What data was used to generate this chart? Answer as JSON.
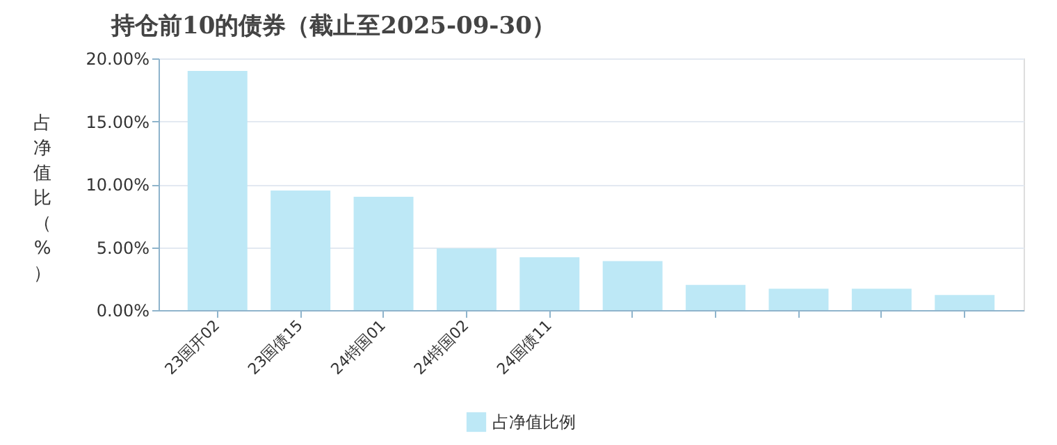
{
  "chart_data": {
    "type": "bar",
    "title": "持仓前10的债券（截止至2025-09-30）",
    "ylabel": "占净值比（%）",
    "categories": [
      "23国开02",
      "23国债15",
      "24特国01",
      "24特国02",
      "24国债11",
      null,
      null,
      null,
      null,
      null
    ],
    "series": [
      {
        "name": "占净值比例",
        "color": "#bde8f6",
        "values": [
          19.0,
          9.5,
          9.0,
          4.9,
          4.2,
          3.9,
          2.0,
          1.7,
          1.7,
          1.2
        ]
      }
    ],
    "ylim": [
      0,
      20
    ],
    "yticks": [
      {
        "value": 0,
        "label": "0.00%"
      },
      {
        "value": 5,
        "label": "5.00%"
      },
      {
        "value": 10,
        "label": "10.00%"
      },
      {
        "value": 15,
        "label": "15.00%"
      },
      {
        "value": 20,
        "label": "20.00%"
      }
    ],
    "grid": "y",
    "legend": "bottom"
  }
}
